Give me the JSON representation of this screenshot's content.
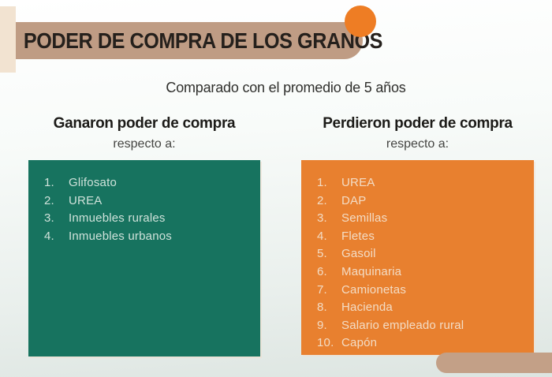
{
  "page": {
    "title": "PODER DE COMPRA DE LOS GRANOS",
    "subtitle": "Comparado con el promedio de 5 años"
  },
  "columns": {
    "gained": {
      "heading": "Ganaron poder de compra",
      "subheading": "respecto a:",
      "items": [
        "Glifosato",
        "UREA",
        "Inmuebles rurales",
        "Inmuebles urbanos"
      ]
    },
    "lost": {
      "heading": "Perdieron poder de compra",
      "subheading": "respecto a:",
      "items": [
        "UREA",
        "DAP",
        "Semillas",
        "Fletes",
        "Gasoil",
        "Maquinaria",
        "Camionetas",
        "Hacienda",
        "Salario empleado rural",
        "Capón"
      ]
    }
  },
  "colors": {
    "banner": "#bf9c84",
    "accent_strip": "#f2e3d1",
    "circle": "#ee7d24",
    "gained_box": "#17735f",
    "lost_box": "#e8802f",
    "footer_bar": "#c3a087",
    "gained_text": "#cfe2da",
    "lost_text": "#f3dcc5"
  }
}
